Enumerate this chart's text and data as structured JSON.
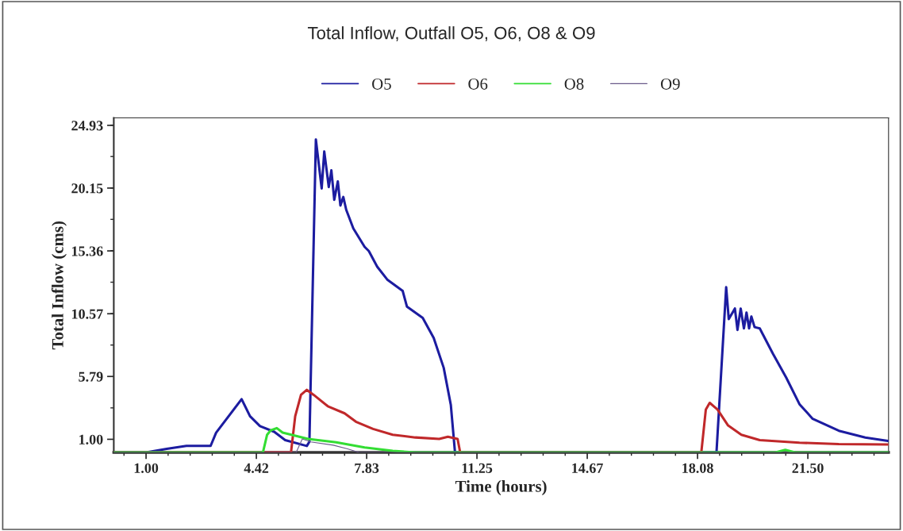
{
  "chart_data": {
    "type": "line",
    "title": "Total Inflow, Outfall O5, O6, O8 & O9",
    "xlabel": "Time (hours)",
    "ylabel": "Total Inflow (cms)",
    "xlim": [
      0,
      24
    ],
    "ylim": [
      0,
      25.5
    ],
    "xticks": [
      {
        "value": 1.0,
        "label": "1.00"
      },
      {
        "value": 4.4167,
        "label": "4.42"
      },
      {
        "value": 7.8333,
        "label": "7.83"
      },
      {
        "value": 11.25,
        "label": "11.25"
      },
      {
        "value": 14.6667,
        "label": "14.67"
      },
      {
        "value": 18.0833,
        "label": "18.08"
      },
      {
        "value": 21.5,
        "label": "21.50"
      }
    ],
    "yticks": [
      {
        "value": 1.0,
        "label": "1.00"
      },
      {
        "value": 5.79,
        "label": "5.79"
      },
      {
        "value": 10.57,
        "label": "10.57"
      },
      {
        "value": 15.36,
        "label": "15.36"
      },
      {
        "value": 20.15,
        "label": "20.15"
      },
      {
        "value": 24.93,
        "label": "24.93"
      }
    ],
    "grid": false,
    "legend": "top",
    "marker": "none",
    "line_style": "solid",
    "series": [
      {
        "name": "O5",
        "color": "#1c1ca0",
        "x": [
          0,
          1.0,
          1.64,
          2.25,
          3.0,
          3.17,
          3.96,
          4.22,
          4.53,
          4.97,
          5.31,
          5.98,
          6.06,
          6.26,
          6.44,
          6.52,
          6.66,
          6.74,
          6.83,
          6.94,
          7.02,
          7.11,
          7.2,
          7.42,
          7.77,
          7.9,
          8.16,
          8.47,
          8.95,
          9.08,
          9.57,
          9.91,
          10.22,
          10.44,
          10.57,
          18.67,
          18.97,
          19.05,
          19.24,
          19.32,
          19.42,
          19.52,
          19.6,
          19.68,
          19.75,
          19.85,
          20.01,
          20.42,
          20.83,
          21.24,
          21.65,
          22.46,
          23.28,
          23.98
        ],
        "values": [
          0,
          0,
          0.27,
          0.5,
          0.5,
          1.5,
          4.06,
          2.76,
          2.0,
          1.57,
          0.94,
          0.49,
          0.82,
          23.85,
          20.12,
          22.94,
          20.23,
          21.5,
          19.25,
          20.66,
          18.82,
          19.47,
          18.5,
          17.08,
          15.67,
          15.35,
          14.16,
          13.18,
          12.31,
          11.12,
          10.25,
          8.73,
          6.45,
          3.63,
          0,
          0,
          12.59,
          10.16,
          10.97,
          9.34,
          10.97,
          9.45,
          10.66,
          9.45,
          10.36,
          9.55,
          9.45,
          7.52,
          5.7,
          3.68,
          2.56,
          1.65,
          1.14,
          0.88
        ]
      },
      {
        "name": "O6",
        "color": "#c0282a",
        "x": [
          0,
          5.49,
          5.62,
          5.8,
          5.98,
          6.19,
          6.63,
          7.15,
          7.5,
          8.03,
          8.64,
          9.34,
          10.08,
          10.35,
          10.65,
          10.73,
          18.2,
          18.34,
          18.46,
          18.7,
          19.03,
          19.44,
          20.01,
          21.24,
          22.46,
          23.97
        ],
        "values": [
          0,
          0,
          2.76,
          4.39,
          4.77,
          4.39,
          3.52,
          2.98,
          2.34,
          1.79,
          1.35,
          1.14,
          1.03,
          1.2,
          1.03,
          0,
          0,
          3.27,
          3.78,
          3.27,
          2.05,
          1.35,
          0.94,
          0.74,
          0.64,
          0.6
        ]
      },
      {
        "name": "O8",
        "color": "#33dd33",
        "x": [
          0,
          4.62,
          4.75,
          4.86,
          5.05,
          5.23,
          6.02,
          6.89,
          7.77,
          8.64,
          9.34,
          20.5,
          20.8,
          21.1,
          24
        ],
        "values": [
          0,
          0,
          1.35,
          1.68,
          1.85,
          1.51,
          1.03,
          0.77,
          0.38,
          0.12,
          0,
          0,
          0.2,
          0,
          0
        ]
      },
      {
        "name": "O9",
        "color": "#6a5a8a",
        "x": [
          0,
          5.65,
          5.84,
          6.1,
          6.8,
          7.24,
          7.6,
          24
        ],
        "values": [
          0,
          0,
          1.03,
          0.8,
          0.55,
          0.27,
          0,
          0
        ]
      }
    ]
  }
}
